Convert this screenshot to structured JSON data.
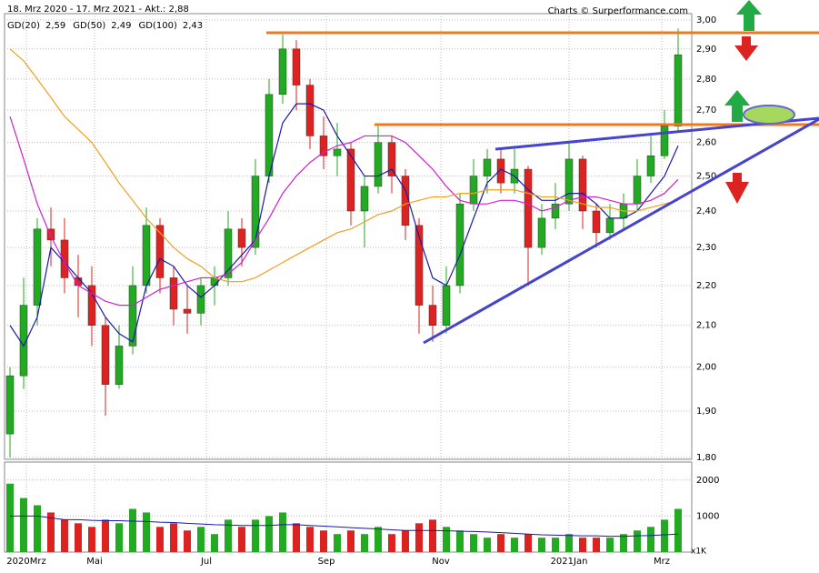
{
  "chart_data": [
    {
      "type": "candlestick",
      "title": "18. Mrz 2020 - 17. Mrz 2021 - Akt.: 2,88",
      "source": "Charts © Surperformance.com",
      "log_scale": true,
      "grid": true,
      "up_color": "#22aa22",
      "down_color": "#dd2222",
      "xlim": [
        0,
        252
      ],
      "x": [
        2,
        7,
        12,
        17,
        22,
        27,
        32,
        37,
        42,
        47,
        52,
        57,
        62,
        67,
        72,
        77,
        82,
        87,
        92,
        97,
        102,
        107,
        112,
        117,
        122,
        127,
        132,
        137,
        142,
        147,
        152,
        157,
        162,
        167,
        172,
        177,
        182,
        187,
        192,
        197,
        202,
        207,
        212,
        217,
        222,
        227,
        232,
        237,
        242,
        247
      ],
      "open": [
        1.85,
        1.98,
        2.15,
        2.35,
        2.32,
        2.22,
        2.2,
        2.1,
        1.96,
        2.05,
        2.2,
        2.36,
        2.22,
        2.14,
        2.13,
        2.2,
        2.22,
        2.35,
        2.3,
        2.5,
        2.75,
        2.9,
        2.78,
        2.62,
        2.56,
        2.58,
        2.4,
        2.47,
        2.6,
        2.5,
        2.36,
        2.15,
        2.1,
        2.2,
        2.42,
        2.5,
        2.55,
        2.48,
        2.52,
        2.3,
        2.38,
        2.42,
        2.55,
        2.4,
        2.34,
        2.38,
        2.42,
        2.5,
        2.56,
        2.65
      ],
      "high": [
        2.0,
        2.22,
        2.38,
        2.41,
        2.38,
        2.28,
        2.25,
        2.12,
        2.1,
        2.25,
        2.41,
        2.38,
        2.25,
        2.2,
        2.22,
        2.25,
        2.4,
        2.38,
        2.55,
        2.8,
        2.95,
        2.93,
        2.8,
        2.68,
        2.66,
        2.6,
        2.5,
        2.65,
        2.62,
        2.52,
        2.38,
        2.2,
        2.25,
        2.45,
        2.55,
        2.58,
        2.58,
        2.58,
        2.53,
        2.42,
        2.48,
        2.6,
        2.56,
        2.42,
        2.42,
        2.45,
        2.55,
        2.62,
        2.7,
        2.97
      ],
      "low": [
        1.8,
        1.95,
        2.1,
        2.25,
        2.18,
        2.12,
        2.05,
        1.89,
        1.95,
        2.03,
        2.18,
        2.18,
        2.1,
        2.08,
        2.1,
        2.15,
        2.2,
        2.25,
        2.28,
        2.48,
        2.72,
        2.7,
        2.58,
        2.52,
        2.5,
        2.36,
        2.3,
        2.45,
        2.45,
        2.32,
        2.08,
        2.06,
        2.08,
        2.18,
        2.4,
        2.45,
        2.45,
        2.45,
        2.2,
        2.28,
        2.35,
        2.4,
        2.35,
        2.3,
        2.32,
        2.35,
        2.4,
        2.48,
        2.55,
        2.63
      ],
      "close": [
        1.98,
        2.15,
        2.35,
        2.32,
        2.22,
        2.2,
        2.1,
        1.96,
        2.05,
        2.2,
        2.36,
        2.22,
        2.14,
        2.13,
        2.2,
        2.22,
        2.35,
        2.3,
        2.5,
        2.75,
        2.9,
        2.78,
        2.62,
        2.56,
        2.58,
        2.4,
        2.47,
        2.6,
        2.5,
        2.36,
        2.15,
        2.1,
        2.2,
        2.42,
        2.5,
        2.55,
        2.48,
        2.52,
        2.3,
        2.38,
        2.42,
        2.55,
        2.4,
        2.34,
        2.38,
        2.42,
        2.5,
        2.56,
        2.65,
        2.88
      ],
      "ylim": [
        1.796,
        3.022
      ],
      "yticks": [
        {
          "value": 1.8,
          "label": "1,80"
        },
        {
          "value": 1.9,
          "label": "1,90"
        },
        {
          "value": 2.0,
          "label": "2,00"
        },
        {
          "value": 2.1,
          "label": "2,10"
        },
        {
          "value": 2.2,
          "label": "2,20"
        },
        {
          "value": 2.3,
          "label": "2,30"
        },
        {
          "value": 2.4,
          "label": "2,40"
        },
        {
          "value": 2.5,
          "label": "2,50"
        },
        {
          "value": 2.6,
          "label": "2,60"
        },
        {
          "value": 2.7,
          "label": "2,70"
        },
        {
          "value": 2.8,
          "label": "2,80"
        },
        {
          "value": 2.9,
          "label": "2,90"
        },
        {
          "value": 3.0,
          "label": "3,00"
        }
      ],
      "series": [
        {
          "name": "GD(20)",
          "color": "#1a1aa8",
          "current_label": "2,59",
          "values": [
            2.1,
            2.05,
            2.12,
            2.3,
            2.26,
            2.22,
            2.18,
            2.12,
            2.08,
            2.06,
            2.2,
            2.27,
            2.25,
            2.2,
            2.17,
            2.2,
            2.24,
            2.28,
            2.32,
            2.5,
            2.66,
            2.72,
            2.72,
            2.7,
            2.62,
            2.56,
            2.5,
            2.5,
            2.52,
            2.46,
            2.33,
            2.22,
            2.2,
            2.28,
            2.38,
            2.48,
            2.52,
            2.5,
            2.46,
            2.43,
            2.43,
            2.45,
            2.45,
            2.42,
            2.38,
            2.38,
            2.4,
            2.45,
            2.5,
            2.59
          ]
        },
        {
          "name": "GD(50)",
          "color": "#d020d0",
          "current_label": "2,49",
          "values": [
            2.68,
            2.55,
            2.42,
            2.33,
            2.26,
            2.2,
            2.18,
            2.16,
            2.15,
            2.15,
            2.17,
            2.19,
            2.2,
            2.21,
            2.22,
            2.22,
            2.23,
            2.26,
            2.32,
            2.38,
            2.45,
            2.5,
            2.54,
            2.57,
            2.59,
            2.6,
            2.62,
            2.62,
            2.62,
            2.6,
            2.56,
            2.52,
            2.47,
            2.43,
            2.42,
            2.42,
            2.43,
            2.43,
            2.42,
            2.4,
            2.41,
            2.43,
            2.44,
            2.44,
            2.43,
            2.42,
            2.42,
            2.43,
            2.45,
            2.49
          ]
        },
        {
          "name": "GD(100)",
          "color": "#f0a020",
          "current_label": "2,43",
          "values": [
            2.9,
            2.86,
            2.8,
            2.74,
            2.68,
            2.64,
            2.6,
            2.54,
            2.48,
            2.43,
            2.38,
            2.34,
            2.3,
            2.27,
            2.25,
            2.22,
            2.21,
            2.21,
            2.22,
            2.24,
            2.26,
            2.28,
            2.3,
            2.32,
            2.34,
            2.35,
            2.37,
            2.39,
            2.4,
            2.42,
            2.43,
            2.44,
            2.44,
            2.45,
            2.45,
            2.46,
            2.46,
            2.46,
            2.45,
            2.44,
            2.44,
            2.43,
            2.42,
            2.41,
            2.41,
            2.4,
            2.4,
            2.41,
            2.42,
            2.43
          ]
        }
      ]
    },
    {
      "type": "bar",
      "unit_label": "x1K",
      "xlim": [
        0,
        252
      ],
      "xticks": [
        {
          "value": 8,
          "label": "2020Mrz"
        },
        {
          "value": 33,
          "label": "Mai"
        },
        {
          "value": 74,
          "label": "Jul"
        },
        {
          "value": 118,
          "label": "Sep"
        },
        {
          "value": 160,
          "label": "Nov"
        },
        {
          "value": 207,
          "label": "2021Jan"
        },
        {
          "value": 241,
          "label": "Mrz"
        }
      ],
      "values": [
        1900,
        1500,
        1300,
        1100,
        900,
        800,
        700,
        900,
        800,
        1200,
        1100,
        700,
        800,
        600,
        700,
        500,
        900,
        700,
        900,
        1000,
        1100,
        800,
        700,
        600,
        500,
        600,
        500,
        700,
        500,
        600,
        800,
        900,
        700,
        600,
        500,
        400,
        500,
        400,
        500,
        400,
        400,
        500,
        400,
        400,
        400,
        500,
        600,
        700,
        900,
        1200
      ],
      "average_color": "#1a1aa8",
      "average": [
        1000,
        1000,
        1000,
        950,
        900,
        900,
        880,
        870,
        870,
        860,
        850,
        830,
        820,
        800,
        780,
        760,
        750,
        740,
        740,
        740,
        760,
        760,
        740,
        720,
        700,
        680,
        660,
        640,
        620,
        600,
        600,
        600,
        590,
        580,
        570,
        560,
        540,
        520,
        500,
        480,
        470,
        460,
        450,
        450,
        440,
        440,
        450,
        460,
        480,
        500
      ],
      "ylim": [
        0,
        2500
      ],
      "yticks": [
        1000,
        2000
      ]
    }
  ]
}
